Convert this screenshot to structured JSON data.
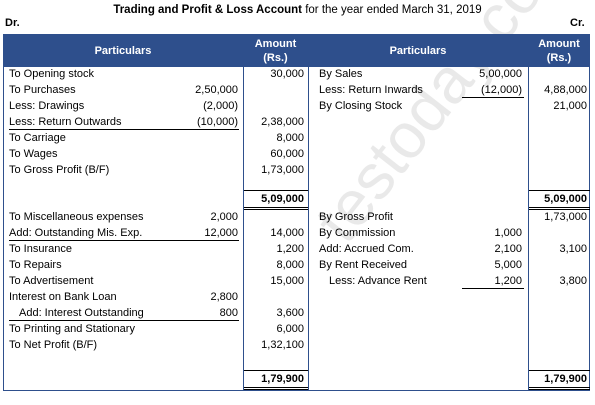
{
  "header": {
    "title_bold": "Trading and Profit & Loss Account",
    "title_rest": " for the year ended March 31, 2019",
    "dr": "Dr.",
    "cr": "Cr."
  },
  "columns": {
    "particulars_left": "Particulars",
    "amount_left_1": "Amount",
    "amount_left_2": "(Rs.)",
    "particulars_right": "Particulars",
    "amount_right_1": "Amount",
    "amount_right_2": "(Rs.)"
  },
  "debit": {
    "opening_stock": {
      "label": "To Opening stock",
      "amount": "30,000"
    },
    "purchases": {
      "label": "To Purchases",
      "sub": "2,50,000"
    },
    "drawings": {
      "label": "Less: Drawings",
      "sub": "(2,000)"
    },
    "return_outwards": {
      "label": "Less: Return Outwards",
      "sub": "(10,000)",
      "amount": "2,38,000"
    },
    "carriage": {
      "label": "To Carriage",
      "amount": "8,000"
    },
    "wages": {
      "label": "To Wages",
      "amount": "60,000"
    },
    "gross_profit": {
      "label": "To Gross Profit (B/F)",
      "amount": "1,73,000"
    },
    "total1": "5,09,000",
    "misc": {
      "label": "To Miscellaneous expenses",
      "sub": "2,000"
    },
    "outstanding_misc": {
      "label": "Add: Outstanding Mis. Exp.",
      "sub": "12,000",
      "amount": "14,000"
    },
    "insurance": {
      "label": "To Insurance",
      "amount": "1,200"
    },
    "repairs": {
      "label": "To Repairs",
      "amount": "8,000"
    },
    "advertisement": {
      "label": "To Advertisement",
      "amount": "15,000"
    },
    "interest_loan": {
      "label": "Interest on Bank Loan",
      "sub": "2,800"
    },
    "interest_outstanding": {
      "label": "Add: Interest Outstanding",
      "sub": "800",
      "amount": "3,600"
    },
    "printing": {
      "label": "To Printing and Stationary",
      "amount": "6,000"
    },
    "net_profit": {
      "label": "To Net Profit (B/F)",
      "amount": "1,32,100"
    },
    "total2": "1,79,900"
  },
  "credit": {
    "sales": {
      "label": "By Sales",
      "sub": "5,00,000"
    },
    "return_inwards": {
      "label": "Less: Return Inwards",
      "sub": "(12,000)",
      "amount": "4,88,000"
    },
    "closing_stock": {
      "label": "By Closing Stock",
      "amount": "21,000"
    },
    "total1": "5,09,000",
    "gross_profit": {
      "label": "By Gross Profit",
      "amount": "1,73,000"
    },
    "commission": {
      "label": "By Commission",
      "sub": "1,000"
    },
    "accrued_com": {
      "label": "Add: Accrued Com.",
      "sub": "2,100",
      "amount": "3,100"
    },
    "rent_received": {
      "label": "By Rent Received",
      "sub": "5,000"
    },
    "advance_rent": {
      "label": "Less: Advance Rent",
      "sub": "1,200",
      "amount": "3,800"
    },
    "total2": "1,79,900"
  },
  "watermark": "testoday.com"
}
